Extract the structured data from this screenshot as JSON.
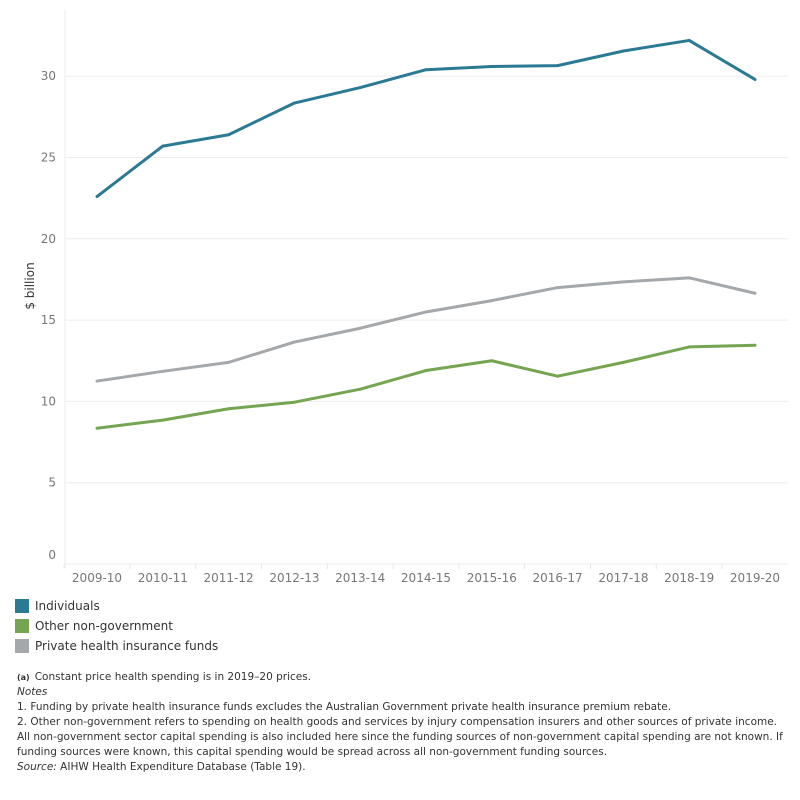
{
  "chart_data": {
    "type": "line",
    "ylabel": "$ billion",
    "xlabel": "",
    "ylim": [
      0,
      33
    ],
    "yticks": [
      0,
      5,
      10,
      15,
      20,
      25,
      30
    ],
    "grid": true,
    "legend_position": "bottom-left",
    "categories": [
      "2009-10",
      "2010-11",
      "2011-12",
      "2012-13",
      "2013-14",
      "2014-15",
      "2015-16",
      "2016-17",
      "2017-18",
      "2018-19",
      "2019-20"
    ],
    "series": [
      {
        "name": "Individuals",
        "color": "#2b7a94",
        "values": [
          22.6,
          25.7,
          26.4,
          28.35,
          29.3,
          30.4,
          30.6,
          30.65,
          31.55,
          32.2,
          29.8
        ]
      },
      {
        "name": "Other non-government",
        "color": "#76a551",
        "values": [
          8.35,
          8.85,
          9.55,
          9.95,
          10.75,
          11.9,
          12.5,
          11.55,
          12.4,
          13.35,
          13.45
        ]
      },
      {
        "name": "Private health insurance funds",
        "color": "#a5a8ab",
        "values": [
          11.25,
          11.85,
          12.4,
          13.65,
          14.5,
          15.5,
          16.2,
          17.0,
          17.35,
          17.6,
          16.65
        ]
      }
    ]
  },
  "notes": {
    "footnote_marker": "(a)",
    "footnote": "Constant price health spending is in 2019–20 prices.",
    "notes_heading": "Notes",
    "note1": "1.   Funding by private health insurance funds excludes the Australian Government private health insurance premium rebate.",
    "note2": "2.   Other non-government refers to spending on health goods and services by injury compensation insurers and other sources of private income. All non-government sector capital spending is also included here since the funding sources of non-government capital spending are not known. If funding sources were known, this capital spending would be spread across all non-government funding sources.",
    "source_label": "Source:",
    "source_text": " AIHW Health Expenditure Database (Table 19)."
  }
}
